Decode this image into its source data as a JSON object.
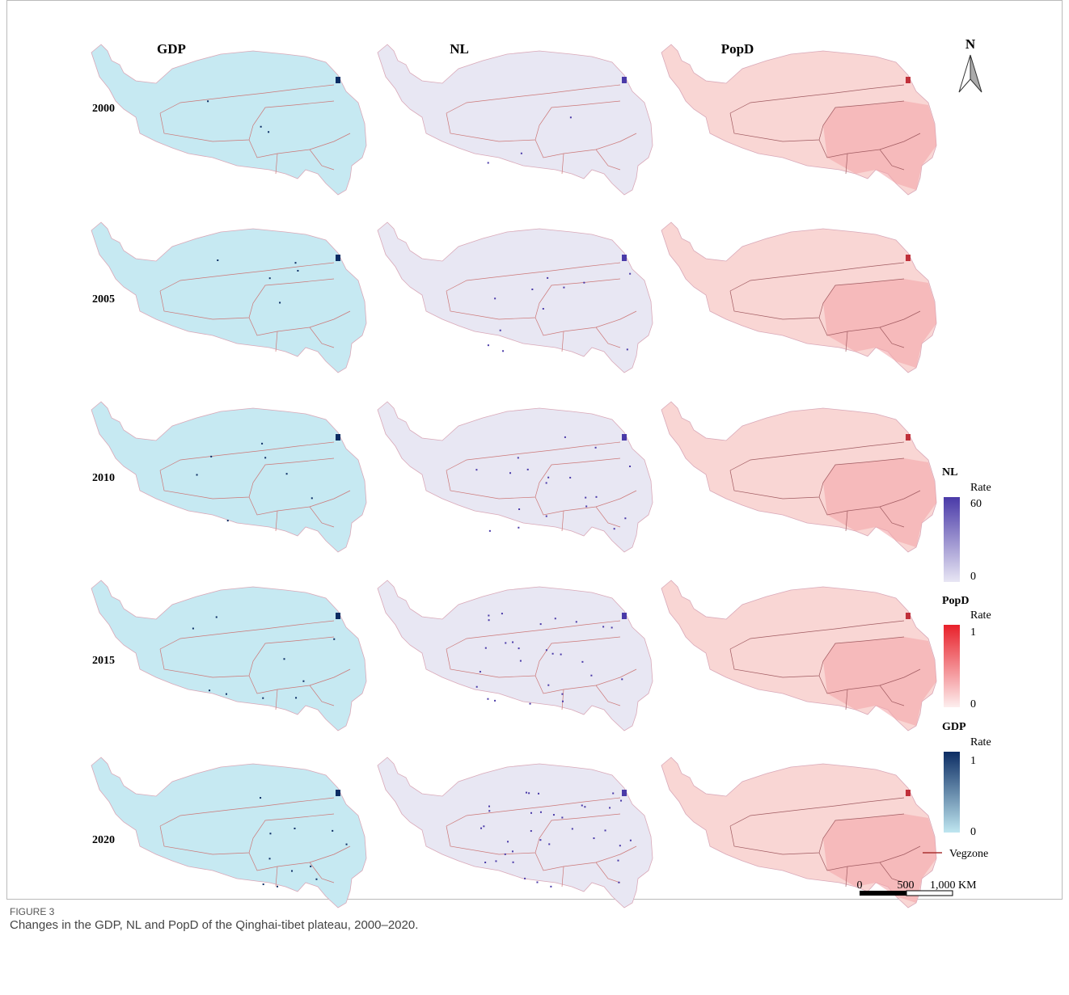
{
  "columns": [
    "GDP",
    "NL",
    "PopD"
  ],
  "rows": [
    "2000",
    "2005",
    "2010",
    "2015",
    "2020"
  ],
  "north": "N",
  "legends": [
    {
      "title": "NL",
      "unit": "Rate",
      "max": "60",
      "min": "0"
    },
    {
      "title": "PopD",
      "unit": "Rate",
      "max": "1",
      "min": "0"
    },
    {
      "title": "GDP",
      "unit": "Rate",
      "max": "1",
      "min": "0"
    }
  ],
  "vegzone": "Vegzone",
  "scale_bar": [
    "0",
    "500",
    "1,000 KM"
  ],
  "caption": {
    "label": "FIGURE 3",
    "text": "Changes in the GDP, NL and PopD of the Qinghai-tibet plateau, 2000–2020."
  }
}
